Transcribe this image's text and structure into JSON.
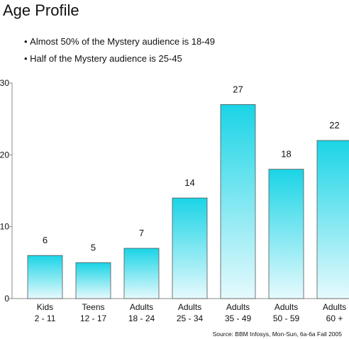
{
  "header": {
    "title": "Age Profile",
    "bullets": [
      "Almost 50% of the Mystery audience is 18-49",
      "Half of the Mystery audience is 25-45"
    ],
    "source": "Source: BBM Infosys, Mon-Sun, 6a-6a Fall 2005"
  },
  "colors": {
    "bar_top": "#1ad4e6",
    "bar_bottom": "#e6fafd",
    "bar_stroke": "#555555",
    "axis": "#888888"
  },
  "chart_data": {
    "type": "bar",
    "categories": [
      [
        "Kids",
        "2 - 11"
      ],
      [
        "Teens",
        "12 - 17"
      ],
      [
        "Adults",
        "18 - 24"
      ],
      [
        "Adults",
        "25 - 34"
      ],
      [
        "Adults",
        "35 - 49"
      ],
      [
        "Adults",
        "50 - 59"
      ],
      [
        "Adults",
        "60 +"
      ]
    ],
    "values": [
      6,
      5,
      7,
      14,
      27,
      18,
      22
    ],
    "data_labels": [
      "6",
      "5",
      "7",
      "14",
      "27",
      "18",
      "22"
    ],
    "ylim": [
      0,
      30
    ],
    "yticks": [
      0,
      10,
      20,
      30
    ],
    "grid": false,
    "xlabel": "",
    "ylabel": ""
  }
}
